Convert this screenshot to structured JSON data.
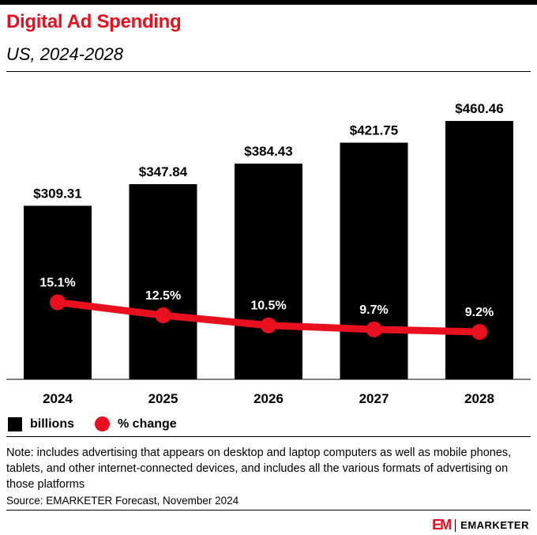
{
  "header": {
    "title": "Digital Ad Spending",
    "subtitle": "US, 2024-2028"
  },
  "chart_data": {
    "type": "bar",
    "categories": [
      "2024",
      "2025",
      "2026",
      "2027",
      "2028"
    ],
    "series": [
      {
        "name": "billions",
        "type": "bar",
        "values": [
          309.31,
          347.84,
          384.43,
          421.75,
          460.46
        ],
        "labels": [
          "$309.31",
          "$347.84",
          "$384.43",
          "$421.75",
          "$460.46"
        ],
        "color": "#000000"
      },
      {
        "name": "% change",
        "type": "line",
        "values": [
          15.1,
          12.5,
          10.5,
          9.7,
          9.2
        ],
        "labels": [
          "15.1%",
          "12.5%",
          "10.5%",
          "9.7%",
          "9.2%"
        ],
        "color": "#e8101f"
      }
    ],
    "ylim": [
      0,
      500
    ],
    "grid": false,
    "legend": "bottom-left"
  },
  "legend": {
    "bars": "billions",
    "line": "% change"
  },
  "footer": {
    "note": "Note: includes advertising that appears on desktop and laptop computers as well as mobile phones, tablets, and other internet-connected devices, and includes all the various formats of advertising on those platforms",
    "source": "Source: EMARKETER Forecast, November 2024",
    "brand_mark": "EM",
    "brand_name": "EMARKETER"
  },
  "colors": {
    "accent": "#e8101f",
    "bars": "#000000"
  }
}
